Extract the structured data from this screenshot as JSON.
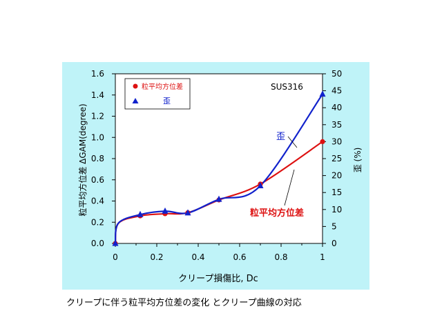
{
  "chart_data": {
    "type": "line",
    "title": "",
    "annotation": "SUS316",
    "xlabel": "クリープ損傷比, Dc",
    "ylabel_left": "粒平均方位差 ΔGAM(degree)",
    "ylabel_right": "歪 (%)",
    "xlim": [
      0,
      1
    ],
    "ylim_left": [
      0,
      1.6
    ],
    "ylim_right": [
      0,
      50
    ],
    "x_ticks": [
      "0",
      "0.2",
      "0.4",
      "0.6",
      "0.8",
      "1"
    ],
    "y_left_ticks": [
      "0.0",
      "0.2",
      "0.4",
      "0.6",
      "0.8",
      "1.0",
      "1.2",
      "1.4",
      "1.6"
    ],
    "y_right_ticks": [
      "0",
      "5",
      "10",
      "15",
      "20",
      "25",
      "30",
      "35",
      "40",
      "45",
      "50"
    ],
    "legend_placement": "top-left",
    "series": [
      {
        "name": "粒平均方位差",
        "axis": "left",
        "marker": "circle",
        "color": "#dd1111",
        "x": [
          0,
          0.12,
          0.24,
          0.35,
          0.5,
          0.7,
          1.0
        ],
        "y": [
          0.0,
          0.26,
          0.28,
          0.29,
          0.41,
          0.56,
          0.96
        ]
      },
      {
        "name": "歪",
        "axis": "right",
        "marker": "triangle",
        "color": "#1122cc",
        "x": [
          0,
          0.12,
          0.24,
          0.35,
          0.5,
          0.7,
          1.0
        ],
        "y": [
          0,
          8.5,
          9.5,
          9.0,
          13,
          17,
          44
        ]
      }
    ],
    "curve_labels": [
      "歪",
      "粒平均方位差"
    ]
  },
  "legend": {
    "label_1": "粒平均方位差",
    "label_2": "歪"
  },
  "caption": "クリープに伴う粒平均方位差の変化 とクリープ曲線の対応",
  "colors": {
    "panel_bg": "#bff3f8",
    "plot_bg": "#ffffff",
    "red": "#dd1111",
    "blue": "#1122cc"
  }
}
